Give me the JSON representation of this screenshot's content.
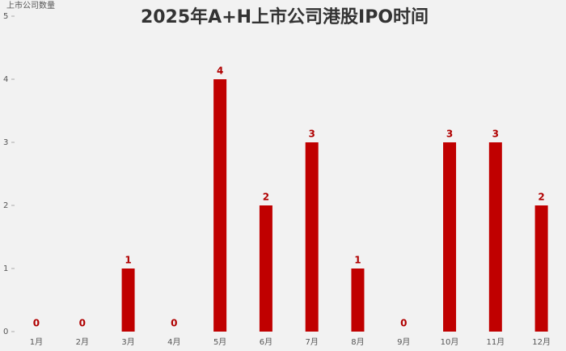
{
  "chart_data": {
    "type": "bar",
    "title": "2025年A+H上市公司港股IPO时间",
    "y_label": "上市公司数量",
    "categories": [
      "1月",
      "2月",
      "3月",
      "4月",
      "5月",
      "6月",
      "7月",
      "8月",
      "9月",
      "10月",
      "11月",
      "12月"
    ],
    "values": [
      0,
      0,
      1,
      0,
      4,
      2,
      3,
      1,
      0,
      3,
      3,
      2
    ],
    "color": "#c00000",
    "ylim": [
      0,
      5
    ],
    "yticks": [
      0,
      1,
      2,
      3,
      4,
      5
    ],
    "grid": false,
    "data_labels": true
  }
}
